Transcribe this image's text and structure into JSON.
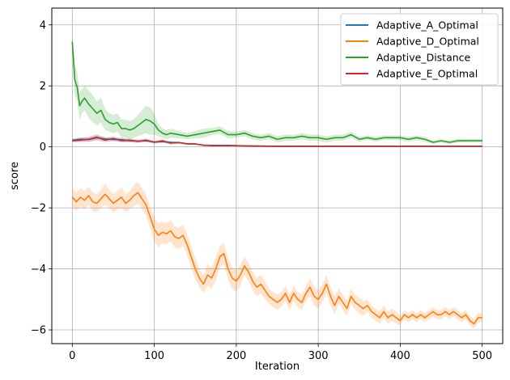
{
  "chart_data": {
    "type": "line",
    "title": "",
    "xlabel": "Iteration",
    "ylabel": "score",
    "xlim": [
      -25,
      525
    ],
    "ylim": [
      -6.45,
      4.55
    ],
    "x_ticks": [
      0,
      100,
      200,
      300,
      400,
      500
    ],
    "y_ticks": [
      -6,
      -4,
      -2,
      0,
      2,
      4
    ],
    "x_tick_labels": [
      "0",
      "100",
      "200",
      "300",
      "400",
      "500"
    ],
    "y_tick_labels": [
      "−6",
      "−4",
      "−2",
      "0",
      "2",
      "4"
    ],
    "grid": true,
    "legend": "top-right",
    "band_opacity": 0.2,
    "series": [
      {
        "name": "Adaptive_A_Optimal",
        "color": "#1f77b4",
        "x": [
          0,
          10,
          20,
          30,
          40,
          50,
          60,
          70,
          80,
          90,
          100,
          110,
          120,
          130,
          140,
          150,
          160,
          170,
          180,
          190,
          200,
          220,
          250,
          300,
          350,
          400,
          450,
          500
        ],
        "y": [
          0.22,
          0.25,
          0.24,
          0.3,
          0.26,
          0.24,
          0.24,
          0.2,
          0.19,
          0.2,
          0.16,
          0.17,
          0.15,
          0.14,
          0.1,
          0.09,
          0.06,
          0.05,
          0.05,
          0.05,
          0.04,
          0.03,
          0.02,
          0.02,
          0.02,
          0.02,
          0.02,
          0.02
        ],
        "band": [
          0.05,
          0.07,
          0.07,
          0.08,
          0.07,
          0.06,
          0.06,
          0.05,
          0.05,
          0.05,
          0.04,
          0.04,
          0.04,
          0.03,
          0.03,
          0.02,
          0.02,
          0.01,
          0.01,
          0.01,
          0.01,
          0.01,
          0.01,
          0.01,
          0.01,
          0.01,
          0.01,
          0.01
        ]
      },
      {
        "name": "Adaptive_D_Optimal",
        "color": "#ff7f0e",
        "x": [
          0,
          5,
          10,
          15,
          20,
          25,
          30,
          35,
          40,
          45,
          50,
          55,
          60,
          65,
          70,
          75,
          80,
          85,
          90,
          95,
          100,
          105,
          110,
          115,
          120,
          125,
          130,
          135,
          140,
          145,
          150,
          155,
          160,
          165,
          170,
          175,
          180,
          185,
          190,
          195,
          200,
          205,
          210,
          215,
          220,
          225,
          230,
          235,
          240,
          245,
          250,
          255,
          260,
          265,
          270,
          275,
          280,
          285,
          290,
          295,
          300,
          305,
          310,
          315,
          320,
          325,
          330,
          335,
          340,
          345,
          350,
          355,
          360,
          365,
          370,
          375,
          380,
          385,
          390,
          395,
          400,
          405,
          410,
          415,
          420,
          425,
          430,
          435,
          440,
          445,
          450,
          455,
          460,
          465,
          470,
          475,
          480,
          485,
          490,
          495,
          500
        ],
        "y": [
          -1.65,
          -1.8,
          -1.65,
          -1.75,
          -1.6,
          -1.8,
          -1.85,
          -1.7,
          -1.55,
          -1.7,
          -1.85,
          -1.75,
          -1.65,
          -1.85,
          -1.75,
          -1.6,
          -1.5,
          -1.7,
          -1.9,
          -2.3,
          -2.7,
          -2.9,
          -2.8,
          -2.85,
          -2.75,
          -2.95,
          -3.0,
          -2.9,
          -3.2,
          -3.6,
          -4.0,
          -4.3,
          -4.5,
          -4.2,
          -4.3,
          -4.0,
          -3.6,
          -3.5,
          -4.0,
          -4.3,
          -4.4,
          -4.2,
          -3.9,
          -4.1,
          -4.4,
          -4.6,
          -4.5,
          -4.7,
          -4.9,
          -5.0,
          -5.1,
          -5.0,
          -4.8,
          -5.1,
          -4.8,
          -5.0,
          -5.1,
          -4.8,
          -4.6,
          -4.9,
          -5.0,
          -4.8,
          -4.5,
          -4.9,
          -5.2,
          -4.9,
          -5.1,
          -5.3,
          -4.9,
          -5.1,
          -5.2,
          -5.3,
          -5.2,
          -5.4,
          -5.5,
          -5.6,
          -5.4,
          -5.6,
          -5.5,
          -5.6,
          -5.7,
          -5.5,
          -5.6,
          -5.5,
          -5.6,
          -5.5,
          -5.6,
          -5.5,
          -5.4,
          -5.5,
          -5.5,
          -5.4,
          -5.5,
          -5.4,
          -5.5,
          -5.6,
          -5.5,
          -5.7,
          -5.8,
          -5.6,
          -5.6
        ],
        "band": [
          0.3,
          0.3,
          0.3,
          0.3,
          0.3,
          0.3,
          0.3,
          0.3,
          0.35,
          0.3,
          0.3,
          0.3,
          0.35,
          0.3,
          0.3,
          0.35,
          0.35,
          0.35,
          0.35,
          0.35,
          0.4,
          0.4,
          0.35,
          0.35,
          0.35,
          0.35,
          0.35,
          0.35,
          0.35,
          0.35,
          0.35,
          0.3,
          0.3,
          0.35,
          0.35,
          0.4,
          0.35,
          0.35,
          0.35,
          0.35,
          0.35,
          0.35,
          0.3,
          0.3,
          0.3,
          0.3,
          0.3,
          0.3,
          0.25,
          0.25,
          0.25,
          0.25,
          0.25,
          0.25,
          0.25,
          0.25,
          0.25,
          0.25,
          0.3,
          0.3,
          0.3,
          0.3,
          0.3,
          0.3,
          0.3,
          0.25,
          0.25,
          0.25,
          0.25,
          0.25,
          0.25,
          0.25,
          0.2,
          0.2,
          0.2,
          0.2,
          0.2,
          0.2,
          0.2,
          0.2,
          0.15,
          0.15,
          0.15,
          0.15,
          0.15,
          0.15,
          0.15,
          0.15,
          0.15,
          0.15,
          0.15,
          0.15,
          0.15,
          0.15,
          0.15,
          0.15,
          0.15,
          0.15,
          0.15,
          0.15,
          0.15
        ]
      },
      {
        "name": "Adaptive_Distance",
        "color": "#2ca02c",
        "x": [
          0,
          3,
          6,
          9,
          12,
          15,
          20,
          25,
          30,
          35,
          40,
          45,
          50,
          55,
          60,
          65,
          70,
          75,
          80,
          85,
          90,
          95,
          100,
          105,
          110,
          115,
          120,
          130,
          140,
          150,
          160,
          170,
          180,
          190,
          200,
          210,
          220,
          230,
          240,
          250,
          260,
          270,
          280,
          290,
          300,
          310,
          320,
          330,
          340,
          350,
          360,
          370,
          380,
          390,
          400,
          410,
          420,
          430,
          440,
          450,
          460,
          470,
          480,
          490,
          500
        ],
        "y": [
          3.45,
          2.2,
          1.95,
          1.35,
          1.5,
          1.6,
          1.4,
          1.25,
          1.1,
          1.2,
          0.9,
          0.8,
          0.75,
          0.8,
          0.6,
          0.6,
          0.55,
          0.6,
          0.7,
          0.8,
          0.9,
          0.85,
          0.75,
          0.55,
          0.45,
          0.4,
          0.45,
          0.4,
          0.35,
          0.4,
          0.45,
          0.5,
          0.55,
          0.4,
          0.4,
          0.45,
          0.35,
          0.3,
          0.35,
          0.25,
          0.3,
          0.3,
          0.35,
          0.3,
          0.3,
          0.25,
          0.3,
          0.3,
          0.4,
          0.25,
          0.3,
          0.25,
          0.3,
          0.3,
          0.3,
          0.25,
          0.3,
          0.25,
          0.15,
          0.2,
          0.15,
          0.2,
          0.2,
          0.2,
          0.2
        ],
        "band": [
          0.25,
          0.5,
          0.5,
          0.45,
          0.4,
          0.4,
          0.45,
          0.45,
          0.4,
          0.4,
          0.35,
          0.3,
          0.3,
          0.3,
          0.3,
          0.3,
          0.3,
          0.3,
          0.35,
          0.4,
          0.45,
          0.45,
          0.35,
          0.2,
          0.15,
          0.15,
          0.15,
          0.12,
          0.1,
          0.12,
          0.15,
          0.12,
          0.12,
          0.12,
          0.1,
          0.1,
          0.1,
          0.1,
          0.1,
          0.1,
          0.1,
          0.1,
          0.1,
          0.1,
          0.1,
          0.1,
          0.1,
          0.1,
          0.1,
          0.08,
          0.08,
          0.08,
          0.08,
          0.08,
          0.08,
          0.08,
          0.08,
          0.08,
          0.06,
          0.06,
          0.06,
          0.06,
          0.06,
          0.06,
          0.06
        ]
      },
      {
        "name": "Adaptive_E_Optimal",
        "color": "#d62728",
        "x": [
          0,
          10,
          20,
          30,
          40,
          50,
          60,
          70,
          80,
          90,
          100,
          110,
          120,
          130,
          140,
          150,
          160,
          170,
          180,
          190,
          200,
          220,
          250,
          300,
          350,
          400,
          450,
          500
        ],
        "y": [
          0.2,
          0.22,
          0.25,
          0.32,
          0.22,
          0.28,
          0.2,
          0.22,
          0.18,
          0.22,
          0.15,
          0.2,
          0.12,
          0.14,
          0.1,
          0.1,
          0.05,
          0.04,
          0.04,
          0.04,
          0.04,
          0.03,
          0.02,
          0.02,
          0.02,
          0.02,
          0.02,
          0.02
        ],
        "band": [
          0.05,
          0.07,
          0.08,
          0.1,
          0.07,
          0.07,
          0.06,
          0.06,
          0.05,
          0.05,
          0.04,
          0.05,
          0.04,
          0.03,
          0.03,
          0.02,
          0.02,
          0.01,
          0.01,
          0.01,
          0.01,
          0.01,
          0.01,
          0.01,
          0.01,
          0.01,
          0.01,
          0.01
        ]
      }
    ]
  }
}
